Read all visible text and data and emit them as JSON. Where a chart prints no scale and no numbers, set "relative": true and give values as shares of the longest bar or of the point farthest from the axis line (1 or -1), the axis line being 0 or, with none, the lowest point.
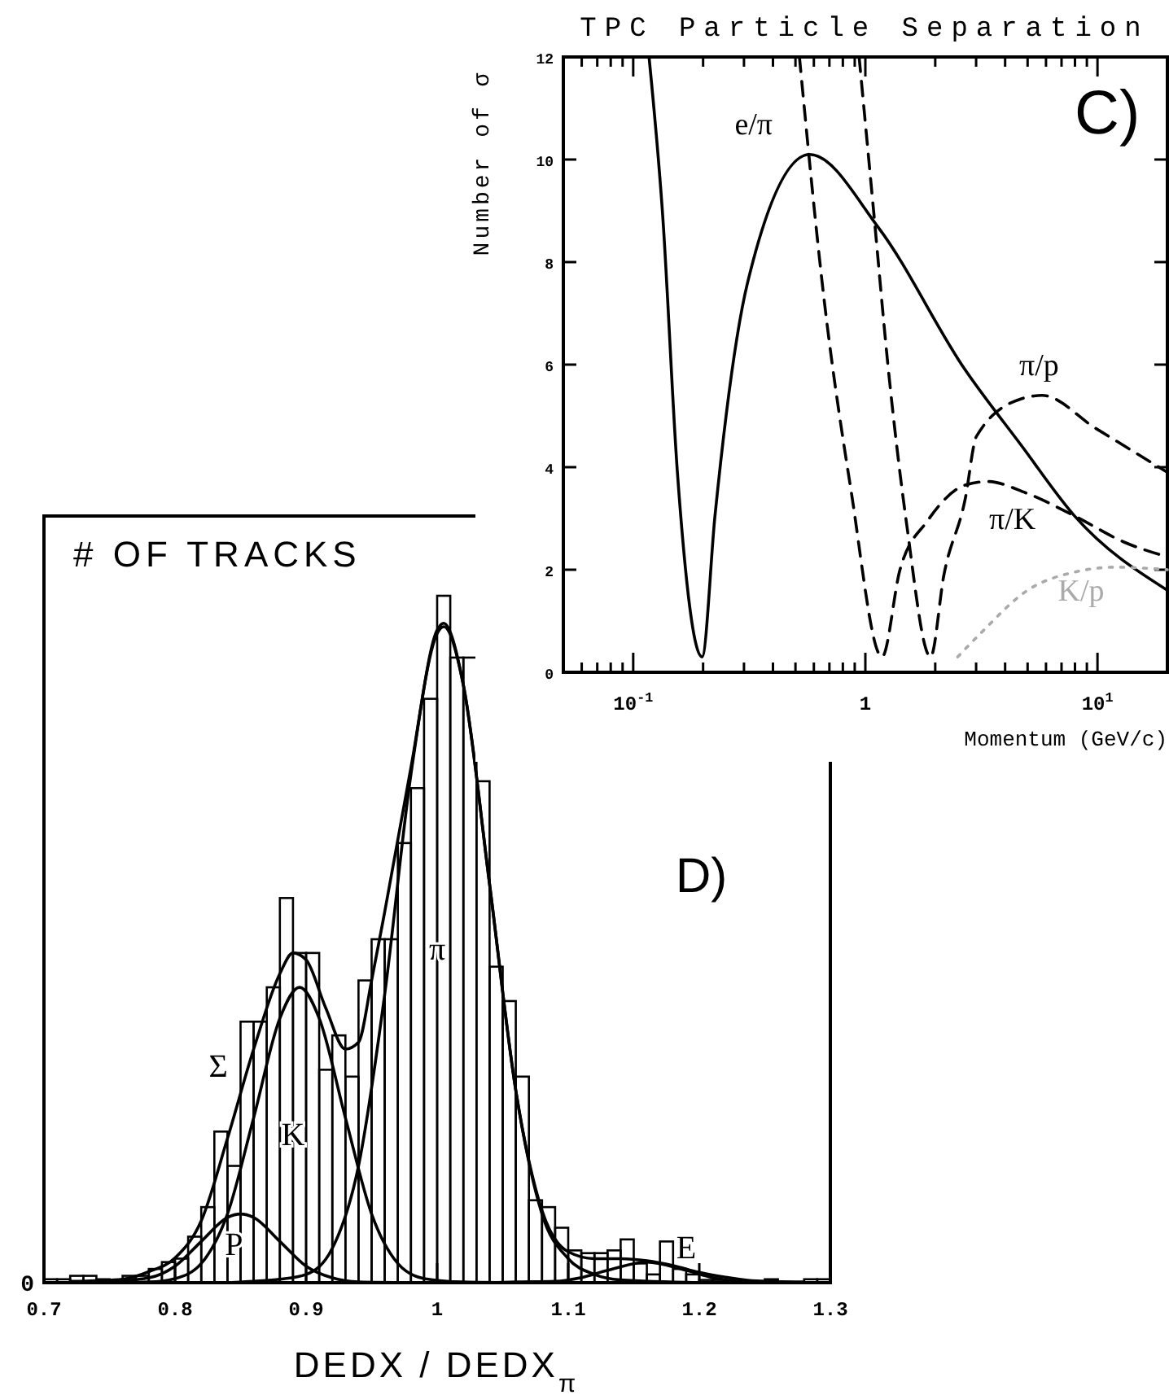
{
  "chart_data": [
    {
      "type": "line",
      "title": "TPC Particle Separation",
      "xlabel": "Momentum (GeV/c)",
      "ylabel": "Number of σ",
      "log": "x",
      "xlim": [
        0.05,
        20
      ],
      "ylim": [
        0,
        12
      ],
      "xticks": [
        {
          "value": 0.06,
          "label": null
        },
        {
          "value": 0.07,
          "label": null
        },
        {
          "value": 0.08,
          "label": null
        },
        {
          "value": 0.09,
          "label": null
        },
        {
          "value": 0.1,
          "label": "10$^{-1}$"
        },
        {
          "value": 0.2,
          "label": null
        },
        {
          "value": 0.3,
          "label": null
        },
        {
          "value": 0.4,
          "label": null
        },
        {
          "value": 0.5,
          "label": null
        },
        {
          "value": 0.6,
          "label": null
        },
        {
          "value": 0.7,
          "label": null
        },
        {
          "value": 0.8,
          "label": null
        },
        {
          "value": 0.9,
          "label": null
        },
        1,
        {
          "value": 2,
          "label": null
        },
        {
          "value": 3,
          "label": null
        },
        {
          "value": 4,
          "label": null
        },
        {
          "value": 5,
          "label": null
        },
        {
          "value": 6,
          "label": null
        },
        {
          "value": 7,
          "label": null
        },
        {
          "value": 8,
          "label": null
        },
        {
          "value": 9,
          "label": null
        },
        {
          "value": 10,
          "label": "10$^{1}$"
        }
      ],
      "yticks": [
        0,
        2,
        4,
        6,
        8,
        10,
        12
      ],
      "annotations": [
        "C)"
      ],
      "series": [
        {
          "name": "e/π",
          "color": "#000000",
          "line_style": "solid",
          "x": [
            0.117,
            0.134,
            0.155,
            0.198,
            0.225,
            0.311,
            0.576,
            1.14,
            2.69,
            4.67,
            7.96,
            20
          ],
          "values": [
            12,
            8.9,
            3.9,
            0.3,
            3.05,
            7.6,
            10.1,
            8.67,
            5.9,
            4.44,
            3.05,
            1.6
          ]
        },
        {
          "name": "π/p",
          "color": "#000000",
          "line_style": "dashed",
          "x": [
            0.94,
            1.08,
            1.27,
            1.5,
            1.91,
            2.18,
            2.69,
            3.01,
            4.67,
            5.77,
            9.8,
            20
          ],
          "values": [
            12,
            9.1,
            5.7,
            2.95,
            0.3,
            1.9,
            3.37,
            4.6,
            5.33,
            5.4,
            4.76,
            3.9
          ]
        },
        {
          "name": "π/K",
          "color": "#000000",
          "line_style": "dashed",
          "x": [
            0.52,
            0.667,
            0.864,
            1.18,
            1.41,
            1.85,
            2.69,
            3.37,
            4.9,
            7.96,
            13,
            20
          ],
          "values": [
            12,
            7.2,
            3.6,
            0.3,
            2.0,
            2.95,
            3.65,
            3.72,
            3.5,
            3.05,
            2.54,
            2.25
          ]
        },
        {
          "name": "K/p",
          "color": "#aaaaaa",
          "line_style": "dotted",
          "x": [
            2.5,
            3.2,
            5,
            7.9,
            12,
            20
          ],
          "values": [
            0.3,
            0.8,
            1.6,
            1.95,
            2.05,
            2.0
          ]
        }
      ]
    },
    {
      "type": "line",
      "relative": true,
      "xlabel": "DEDX / DEDX$_{π}$",
      "ylabel": "# OF TRACKS",
      "xlim": [
        0.7,
        1.3
      ],
      "xticks": [
        0.7,
        0.8,
        0.9,
        1,
        1.1,
        1.2,
        1.3
      ],
      "annotations": [
        "D)",
        {
          "text": "0",
          "x": 0.7,
          "y": 0
        }
      ],
      "series": [
        {
          "type": "histogram",
          "color": "#000000",
          "bins": [
            0.7,
            0.71,
            0.72,
            0.73,
            0.74,
            0.75,
            0.76,
            0.77,
            0.78,
            0.79,
            0.8,
            0.81,
            0.82,
            0.83,
            0.84,
            0.85,
            0.86,
            0.87,
            0.88,
            0.89,
            0.9,
            0.91,
            0.92,
            0.93,
            0.94,
            0.95,
            0.96,
            0.97,
            0.98,
            0.99,
            1,
            1.01,
            1.02,
            1.03,
            1.04,
            1.05,
            1.06,
            1.07,
            1.08,
            1.09,
            1.1,
            1.11,
            1.12,
            1.13,
            1.14,
            1.15,
            1.16,
            1.17,
            1.18,
            1.19,
            1.2,
            1.21,
            1.22,
            1.23,
            1.24,
            1.25,
            1.26,
            1.27,
            1.28,
            1.29,
            1.3
          ],
          "values": [
            0.005,
            0.005,
            0.01,
            0.01,
            0.005,
            0.003,
            0.01,
            0.01,
            0.02,
            0.03,
            0.035,
            0.067,
            0.11,
            0.22,
            0.17,
            0.38,
            0.38,
            0.43,
            0.56,
            0.48,
            0.48,
            0.31,
            0.36,
            0.3,
            0.44,
            0.5,
            0.5,
            0.64,
            0.72,
            0.85,
            1,
            0.91,
            0.91,
            0.73,
            0.46,
            0.41,
            0.3,
            0.12,
            0.11,
            0.08,
            0.047,
            0.043,
            0.043,
            0.047,
            0.063,
            0.028,
            0.012,
            0.06,
            0.02,
            0.012,
            0.004,
            0.004,
            0.002,
            0.002,
            0.002,
            0.005,
            0,
            0,
            0.005,
            0.005
          ]
        },
        {
          "name": "Σ",
          "color": "#000000",
          "x": [
            0.72,
            0.74,
            0.76,
            0.78,
            0.8,
            0.82,
            0.84,
            0.86,
            0.88,
            0.89,
            0.9,
            0.915,
            0.93,
            0.94,
            0.95,
            0.96,
            0.98,
            1.0,
            1.005,
            1.02,
            1.04,
            1.06,
            1.08,
            1.1,
            1.12,
            1.14,
            1.16,
            1.18,
            1.2,
            1.22,
            1.24,
            1.28
          ],
          "values": [
            0.002,
            0.003,
            0.005,
            0.016,
            0.036,
            0.09,
            0.21,
            0.34,
            0.45,
            0.48,
            0.47,
            0.4,
            0.34,
            0.35,
            0.44,
            0.54,
            0.75,
            0.95,
            0.96,
            0.87,
            0.58,
            0.28,
            0.105,
            0.045,
            0.035,
            0.035,
            0.032,
            0.025,
            0.015,
            0.008,
            0.003,
            0.001
          ]
        },
        {
          "name": "P",
          "color": "#000000",
          "x": [
            0.74,
            0.78,
            0.8,
            0.82,
            0.84,
            0.85,
            0.86,
            0.88,
            0.9,
            0.92,
            0.94,
            0.98
          ],
          "values": [
            0,
            0.007,
            0.024,
            0.06,
            0.095,
            0.1,
            0.095,
            0.06,
            0.024,
            0.007,
            0.001,
            0
          ]
        },
        {
          "name": "K",
          "color": "#000000",
          "x": [
            0.74,
            0.78,
            0.8,
            0.82,
            0.84,
            0.86,
            0.88,
            0.895,
            0.91,
            0.93,
            0.95,
            0.97,
            0.99,
            1.02,
            1.06
          ],
          "values": [
            0,
            0.001,
            0.006,
            0.028,
            0.1,
            0.24,
            0.385,
            0.43,
            0.385,
            0.24,
            0.1,
            0.028,
            0.006,
            0.001,
            0
          ]
        },
        {
          "name": "π",
          "color": "#000000",
          "x": [
            0.84,
            0.86,
            0.88,
            0.9,
            0.92,
            0.94,
            0.96,
            0.98,
            1.0,
            1.005,
            1.02,
            1.04,
            1.06,
            1.08,
            1.1,
            1.12,
            1.14,
            1.2
          ],
          "values": [
            0,
            0.002,
            0.005,
            0.012,
            0.05,
            0.17,
            0.42,
            0.74,
            0.945,
            0.955,
            0.87,
            0.58,
            0.28,
            0.1,
            0.035,
            0.012,
            0.004,
            0
          ]
        },
        {
          "name": "E",
          "color": "#000000",
          "x": [
            1.04,
            1.06,
            1.09,
            1.11,
            1.13,
            1.16,
            1.19,
            1.21,
            1.23,
            1.26,
            1.3
          ],
          "values": [
            0,
            0.001,
            0.002,
            0.0075,
            0.018,
            0.03,
            0.018,
            0.0075,
            0.002,
            0,
            0
          ]
        }
      ]
    }
  ]
}
